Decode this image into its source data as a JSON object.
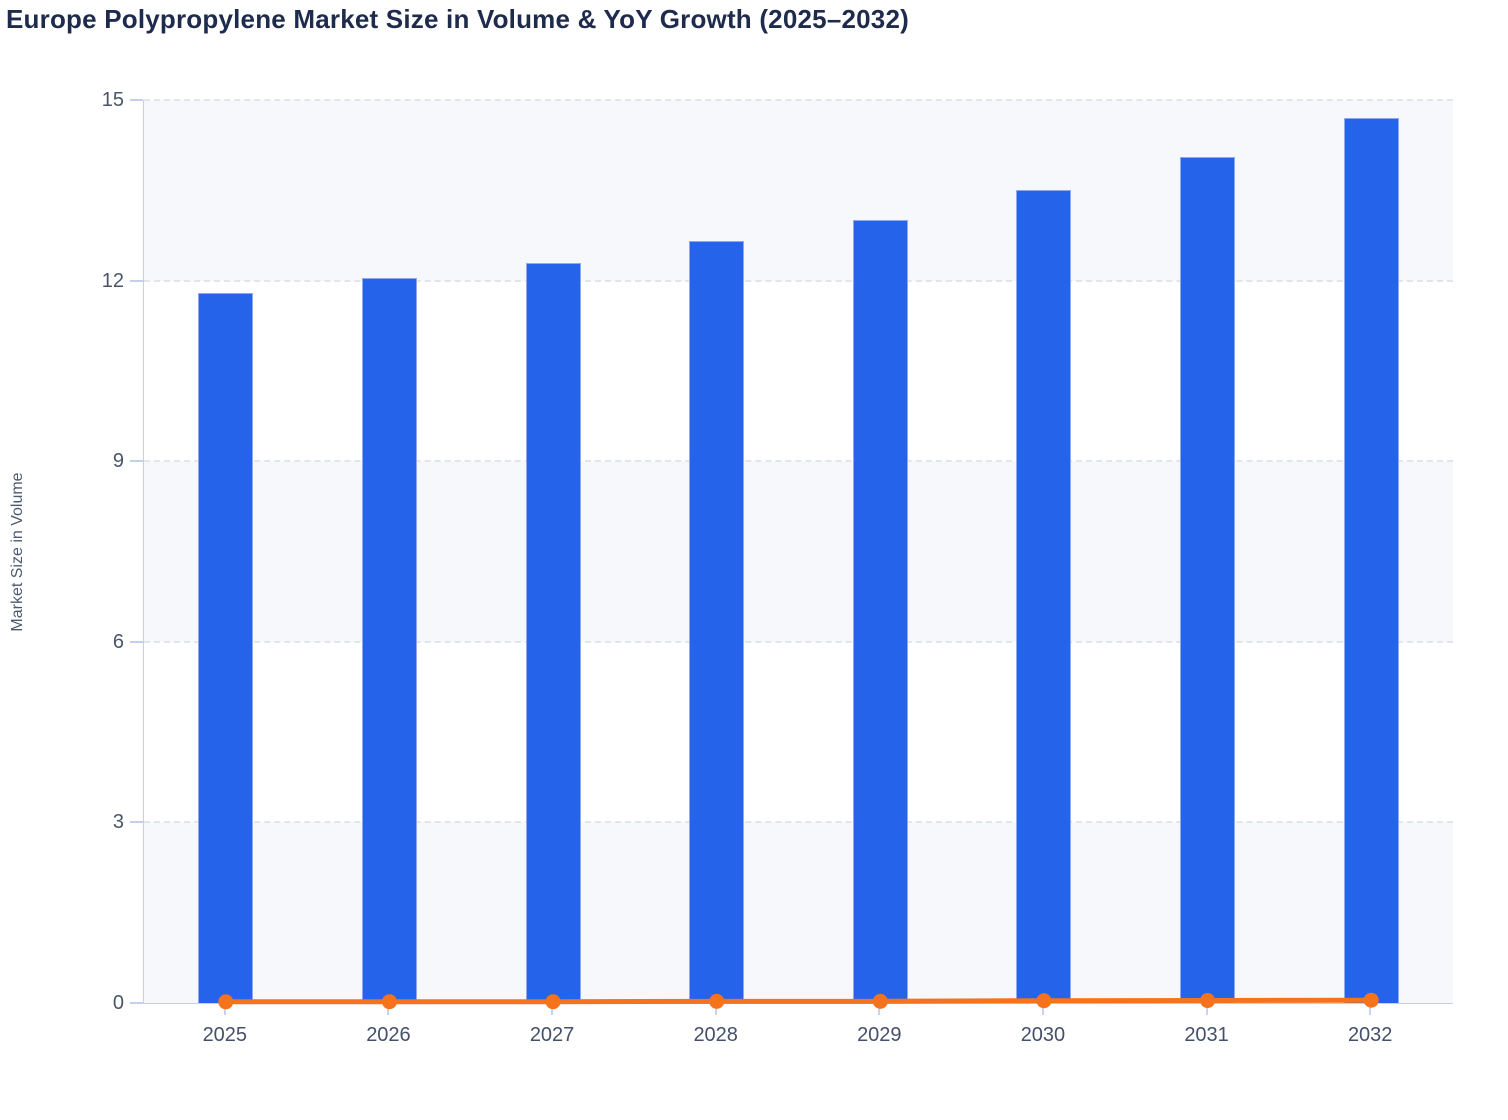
{
  "page": {
    "title": "Europe Polypropylene Market Size in Volume & YoY Growth (2025–2032)"
  },
  "chart_data": {
    "type": "bar",
    "subtype": "bar+line combo",
    "title": "Europe Polypropylene Market Size in Volume & YoY Growth (2025–2032)",
    "xlabel": "",
    "ylabel": "Market Size in Volume",
    "categories": [
      "2025",
      "2026",
      "2027",
      "2028",
      "2029",
      "2030",
      "2031",
      "2032"
    ],
    "series": [
      {
        "name": "Market Size in Volume",
        "type": "bar",
        "color": "#2563eb",
        "values": [
          11.8,
          12.05,
          12.3,
          12.65,
          13.0,
          13.5,
          14.05,
          14.7
        ]
      },
      {
        "name": "YoY Growth",
        "type": "line",
        "color": "#f5731d",
        "values": [
          0.02,
          0.021,
          0.021,
          0.028,
          0.028,
          0.038,
          0.041,
          0.046
        ]
      }
    ],
    "ylim": [
      0,
      15
    ],
    "yticks": [
      0,
      3,
      6,
      9,
      12,
      15
    ],
    "grid": "horizontal dashed",
    "legend": "none",
    "plot_band_alternating": true
  },
  "colors": {
    "bar_fill": "#2563eb",
    "bar_border": "#8fa9ef",
    "line": "#f5731d",
    "band": "#f7f8fb",
    "gridline": "#e2e5ea",
    "axis_line": "#c5cfec",
    "tick_mark": "#c9d2ec",
    "title_text": "#1e2b4c",
    "y_tick_text": "#4a5568",
    "x_tick_text": "#44506a",
    "y_title_text": "#4c5a70"
  }
}
